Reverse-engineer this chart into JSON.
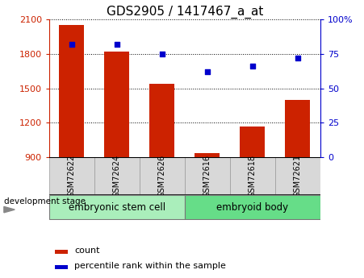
{
  "title": "GDS2905 / 1417467_a_at",
  "samples": [
    "GSM72622",
    "GSM72624",
    "GSM72626",
    "GSM72616",
    "GSM72618",
    "GSM72621"
  ],
  "counts": [
    2050,
    1820,
    1540,
    935,
    1170,
    1400
  ],
  "percentiles": [
    82,
    82,
    75,
    62,
    66,
    72
  ],
  "ylim_left": [
    900,
    2100
  ],
  "ylim_right": [
    0,
    100
  ],
  "yticks_left": [
    900,
    1200,
    1500,
    1800,
    2100
  ],
  "yticks_right": [
    0,
    25,
    50,
    75,
    100
  ],
  "bar_color": "#cc2200",
  "dot_color": "#0000cc",
  "grid_color": "#000000",
  "group1_label": "embryonic stem cell",
  "group1_color": "#aaeebb",
  "group2_label": "embryoid body",
  "group2_color": "#66dd88",
  "dev_stage_label": "development stage",
  "legend_count": "count",
  "legend_percentile": "percentile rank within the sample",
  "left_axis_color": "#cc2200",
  "right_axis_color": "#0000cc",
  "bar_width": 0.55,
  "title_fontsize": 11,
  "tick_fontsize": 8,
  "group_fontsize": 8.5,
  "legend_fontsize": 8,
  "dev_stage_fontsize": 7.5
}
